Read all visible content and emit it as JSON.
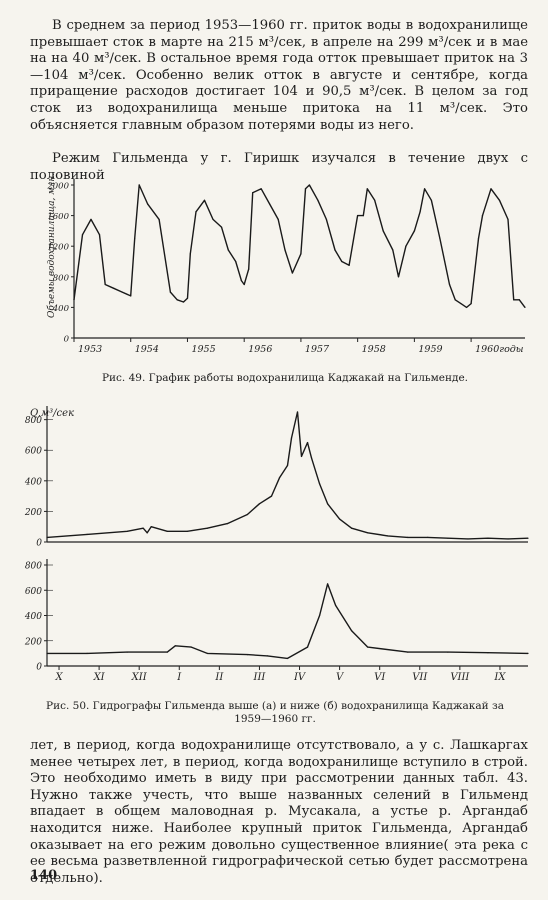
{
  "text": {
    "para1": "В среднем за период 1953—1960 гг. приток воды в водохранилище превышает сток в марте на 215 м³/сек, в апреле на 299 м³/сек и в мае на на 40 м³/сек.  В остальное  время года  отток превышает  приток на 3—104 м³/сек. Особенно велик отток в августе и сентябре, когда приращение расходов достигает 104 и 90,5 м³/сек. В целом за год сток из водохранилища меньше притока на 11 м³/сек. Это объясняется главным образом потерями воды из него.",
    "para2": "Режим Гильменда у г. Гиришк изучался в течение двух с половиной",
    "caption49": "Рис. 49. График работы водохранилища Каджакай на Гильменде.",
    "caption50": "Рис. 50. Гидрографы Гильменда  выше  (а) и ниже (б)  водохранилища  Каджакай за 1959—1960 гг.",
    "para3": "лет, в период, когда водохранилище отсутствовало, а у с. Лашкаргах менее четырех лет, в период, когда водохранилище вступило в строй. Это необходимо иметь в виду при рассмотрении данных табл. 43. Нужно также учесть, что выше названных селений в Гильменд впадает в общем маловодная р. Мусакала, а устье р. Аргандаб находится ниже. Наиболее крупный приток Гильменда, Аргандаб оказывает на его режим довольно существенное влияние( эта река с ее весьма разветвленной гидрографической сетью будет рассмотрена отдельно).",
    "page_number": "140"
  },
  "chart_data": [
    {
      "type": "line",
      "figure": "Рис. 49",
      "ylabel": "Объемы водохранилища, млн. м³",
      "yticks": [
        0,
        400,
        800,
        1200,
        1600,
        2000
      ],
      "ylim": [
        0,
        2000
      ],
      "xticks": [
        "1953",
        "1954",
        "1955",
        "1956",
        "1957",
        "1958",
        "1959",
        "1960годы"
      ],
      "xlim": [
        1953,
        1960.95
      ],
      "x": [
        1953.0,
        1953.15,
        1953.3,
        1953.45,
        1953.55,
        1953.7,
        1953.85,
        1954.0,
        1954.07,
        1954.15,
        1954.3,
        1954.5,
        1954.7,
        1954.82,
        1954.93,
        1955.0,
        1955.05,
        1955.15,
        1955.3,
        1955.45,
        1955.6,
        1955.72,
        1955.85,
        1955.95,
        1956.0,
        1956.08,
        1956.15,
        1956.3,
        1956.45,
        1956.6,
        1956.72,
        1956.85,
        1957.0,
        1957.08,
        1957.15,
        1957.3,
        1957.45,
        1957.6,
        1957.72,
        1957.85,
        1958.0,
        1958.1,
        1958.17,
        1958.3,
        1958.45,
        1958.62,
        1958.72,
        1958.85,
        1959.0,
        1959.1,
        1959.18,
        1959.3,
        1959.45,
        1959.62,
        1959.72,
        1959.82,
        1959.92,
        1960.0,
        1960.13,
        1960.2,
        1960.35,
        1960.5,
        1960.65,
        1960.75,
        1960.85,
        1960.95
      ],
      "values": [
        500,
        1350,
        1550,
        1350,
        700,
        650,
        600,
        550,
        1300,
        2000,
        1750,
        1550,
        600,
        500,
        470,
        520,
        1100,
        1650,
        1800,
        1550,
        1450,
        1150,
        1000,
        750,
        700,
        900,
        1900,
        1950,
        1750,
        1550,
        1150,
        850,
        1100,
        1950,
        2000,
        1800,
        1550,
        1150,
        1000,
        950,
        1600,
        1600,
        1950,
        1800,
        1400,
        1150,
        800,
        1200,
        1400,
        1650,
        1950,
        1800,
        1300,
        700,
        500,
        450,
        400,
        450,
        1300,
        1600,
        1950,
        1800,
        1550,
        500,
        500,
        400
      ]
    },
    {
      "type": "line",
      "figure": "Рис. 50 (а)",
      "ylabel": "Q,м³/сек",
      "yticks": [
        0,
        200,
        400,
        600,
        800
      ],
      "ylim": [
        0,
        850
      ],
      "xlim": [
        0,
        12
      ],
      "x": [
        0,
        1,
        2,
        2.4,
        2.5,
        2.6,
        3,
        3.5,
        4,
        4.5,
        5,
        5.3,
        5.6,
        5.8,
        6.0,
        6.1,
        6.25,
        6.35,
        6.5,
        6.6,
        6.8,
        7.0,
        7.3,
        7.6,
        8,
        8.5,
        9,
        9.5,
        10,
        10.5,
        11,
        11.5,
        12
      ],
      "values": [
        30,
        50,
        70,
        90,
        60,
        100,
        70,
        70,
        90,
        120,
        180,
        250,
        300,
        420,
        500,
        680,
        850,
        560,
        650,
        550,
        380,
        250,
        150,
        90,
        60,
        40,
        30,
        30,
        25,
        20,
        25,
        20,
        25
      ]
    },
    {
      "type": "line",
      "figure": "Рис. 50 (б)",
      "yticks": [
        0,
        200,
        400,
        600,
        800
      ],
      "ylim": [
        0,
        800
      ],
      "xticks": [
        "X",
        "XI",
        "XII",
        "I",
        "II",
        "III",
        "IV",
        "V",
        "VI",
        "VII",
        "VIII",
        "IX"
      ],
      "xlim": [
        0,
        12
      ],
      "x": [
        0,
        1,
        2,
        3,
        3.2,
        3.6,
        4,
        5,
        5.5,
        6,
        6.5,
        6.8,
        7.0,
        7.2,
        7.6,
        8,
        9,
        10,
        11,
        12
      ],
      "values": [
        100,
        100,
        110,
        110,
        160,
        150,
        100,
        90,
        80,
        60,
        150,
        400,
        650,
        480,
        280,
        150,
        110,
        110,
        105,
        100
      ]
    }
  ]
}
